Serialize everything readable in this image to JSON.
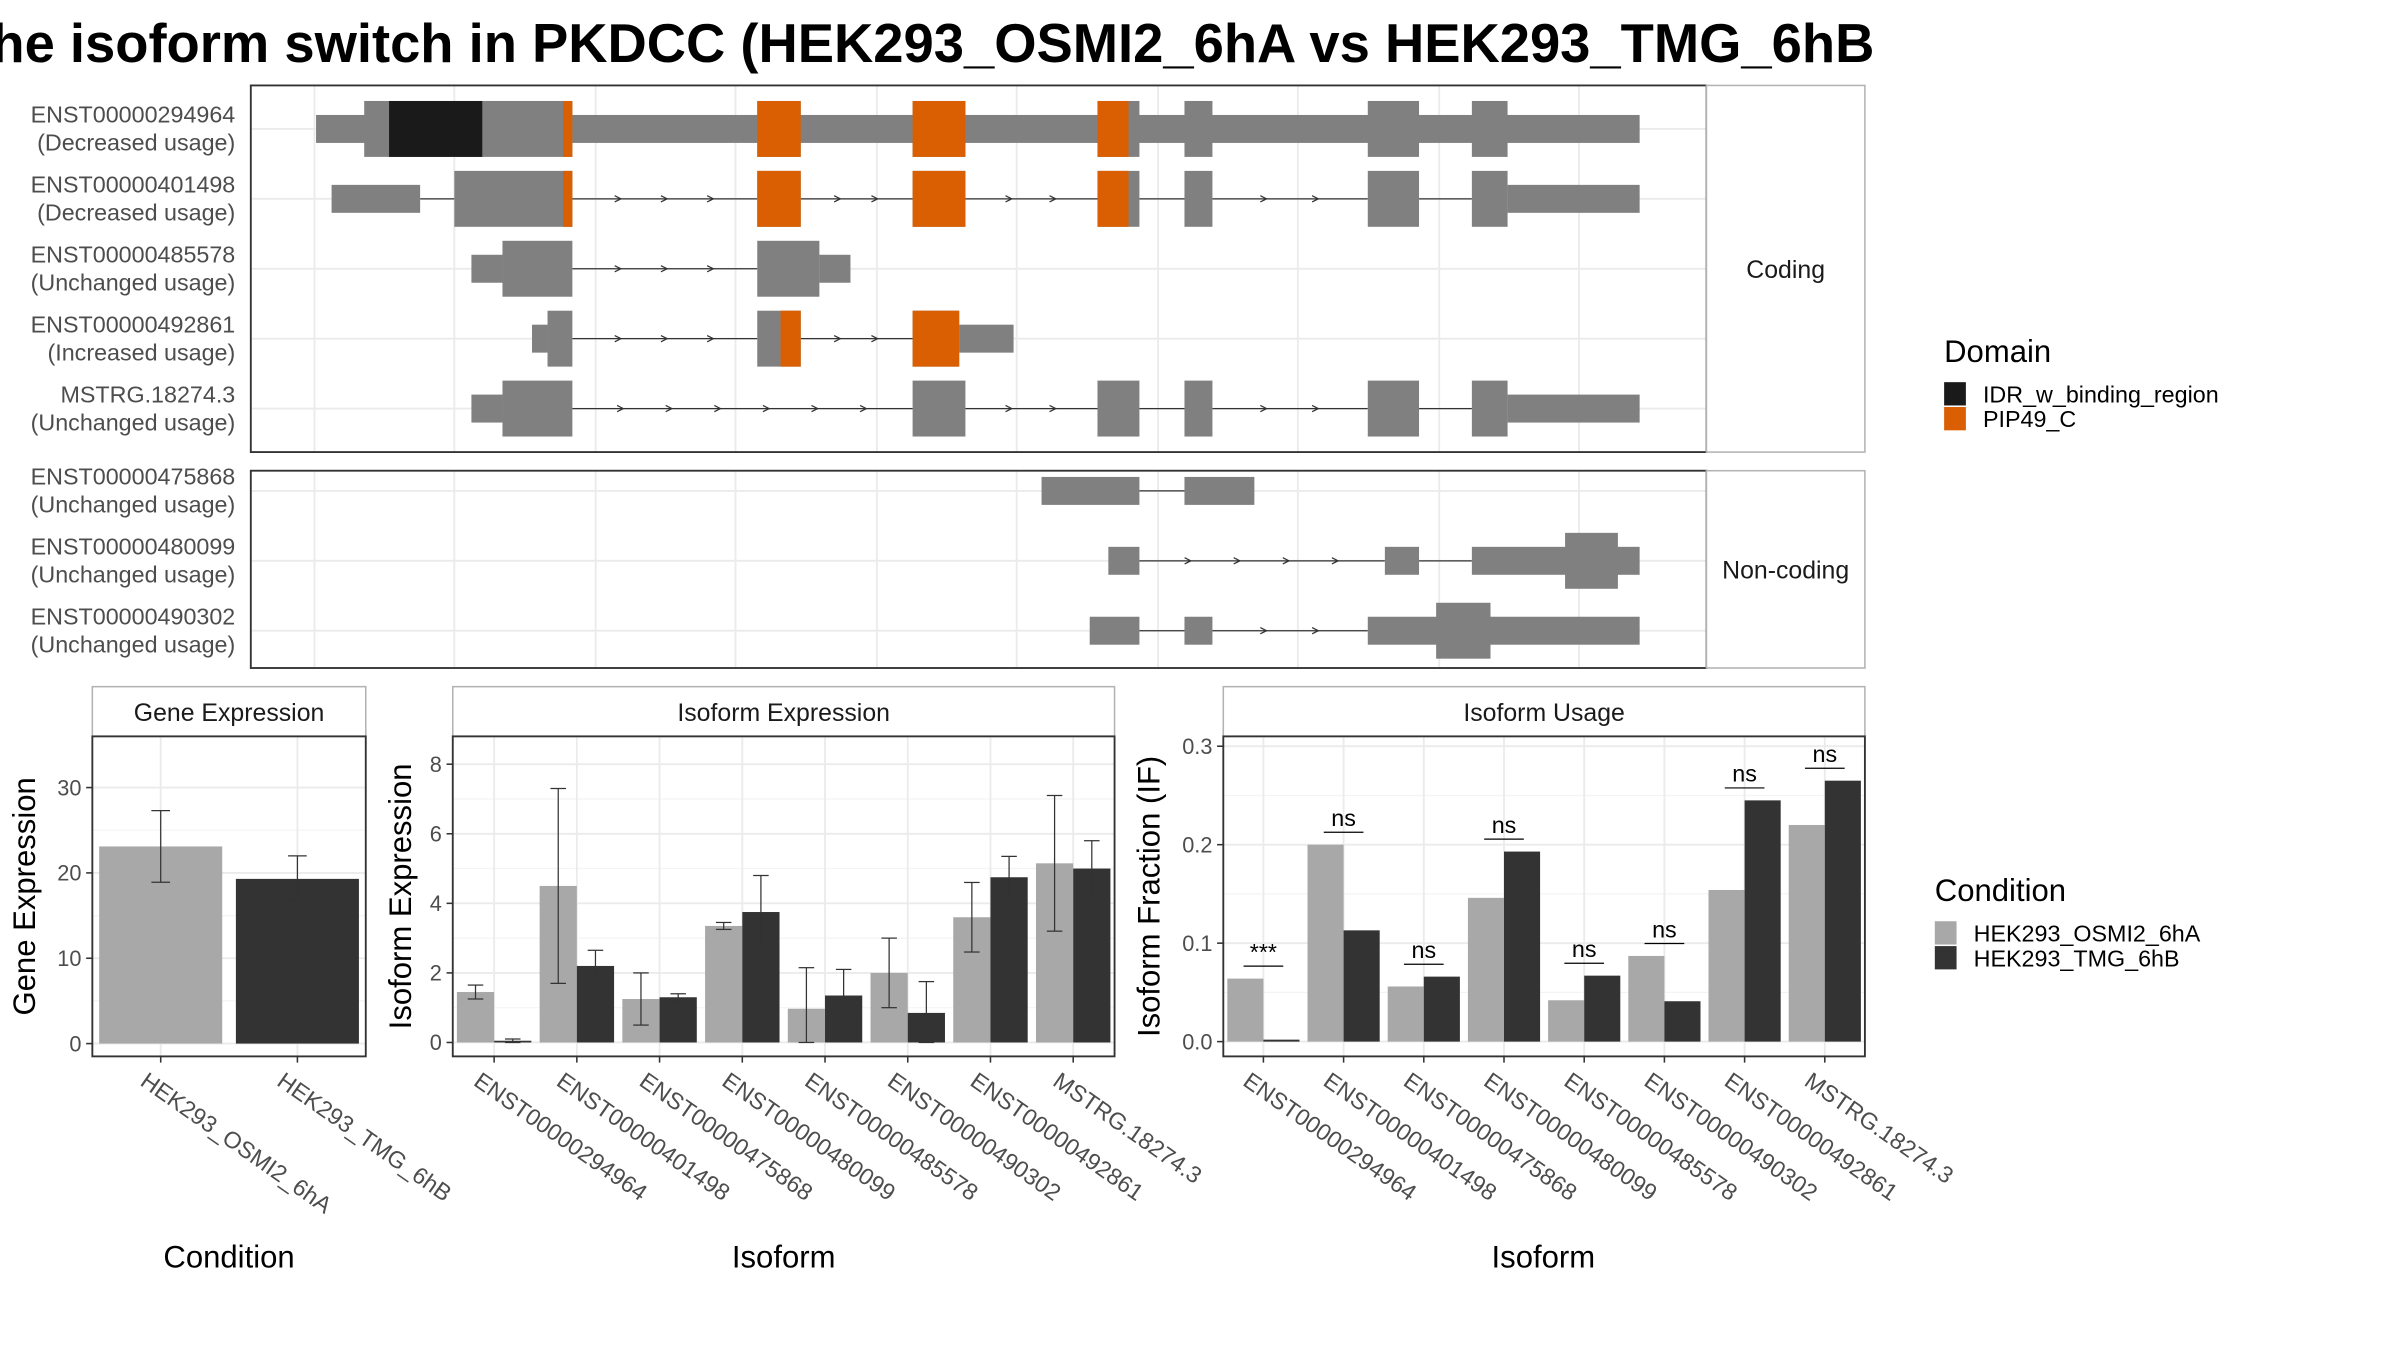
{
  "title": "he isoform switch in PKDCC (HEK293_OSMI2_6hA vs HEK293_TMG_6hB",
  "colors": {
    "exon": "#808080",
    "idr": "#1a1a1a",
    "pip": "#d95f02",
    "cond1": "#a8a8a8",
    "cond2": "#333333",
    "grid": "#ebebeb",
    "panel_border": "#333333",
    "strip_border": "#b3b3b3"
  },
  "structure": {
    "coding_strip": "Coding",
    "noncoding_strip": "Non-coding",
    "legend_title": "Domain",
    "legend_items": [
      {
        "label": "IDR_w_binding_region",
        "color": "#1a1a1a"
      },
      {
        "label": "PIP49_C",
        "color": "#d95f02"
      }
    ],
    "coding_isoforms": [
      {
        "id": "ENST00000294964",
        "usage": "(Decreased usage)",
        "utr": [
          [
            203,
            250
          ],
          [
            368,
            1055
          ]
        ],
        "cds": [
          [
            234,
            368
          ],
          [
            487,
            515
          ],
          [
            587,
            621
          ],
          [
            706,
            733
          ],
          [
            762,
            780
          ],
          [
            880,
            913
          ],
          [
            947,
            970
          ]
        ],
        "domains": [
          [
            250,
            310,
            "idr"
          ],
          [
            362,
            368,
            "pip"
          ],
          [
            487,
            515,
            "pip"
          ],
          [
            587,
            621,
            "pip"
          ],
          [
            706,
            726,
            "pip"
          ]
        ],
        "introns": [
          [
            368,
            487
          ],
          [
            515,
            587
          ],
          [
            621,
            706
          ],
          [
            733,
            762
          ],
          [
            780,
            880
          ],
          [
            913,
            947
          ]
        ]
      },
      {
        "id": "ENST00000401498",
        "usage": "(Decreased usage)",
        "utr": [
          [
            213,
            270
          ],
          [
            970,
            1055
          ]
        ],
        "cds": [
          [
            292,
            368
          ],
          [
            487,
            515
          ],
          [
            587,
            621
          ],
          [
            706,
            733
          ],
          [
            762,
            780
          ],
          [
            880,
            913
          ],
          [
            947,
            970
          ]
        ],
        "domains": [
          [
            362,
            368,
            "pip"
          ],
          [
            487,
            515,
            "pip"
          ],
          [
            587,
            621,
            "pip"
          ],
          [
            706,
            726,
            "pip"
          ]
        ],
        "introns": [
          [
            270,
            292
          ],
          [
            368,
            487
          ],
          [
            515,
            587
          ],
          [
            621,
            706
          ],
          [
            733,
            762
          ],
          [
            780,
            880
          ],
          [
            913,
            947
          ]
        ]
      },
      {
        "id": "ENST00000485578",
        "usage": "(Unchanged usage)",
        "utr": [
          [
            303,
            323
          ],
          [
            527,
            547
          ]
        ],
        "cds": [
          [
            323,
            368
          ],
          [
            487,
            527
          ]
        ],
        "domains": [],
        "introns": [
          [
            368,
            487
          ]
        ]
      },
      {
        "id": "ENST00000492861",
        "usage": "(Increased usage)",
        "utr": [
          [
            342,
            352
          ],
          [
            617,
            652
          ]
        ],
        "cds": [
          [
            352,
            368
          ],
          [
            487,
            515
          ],
          [
            587,
            617
          ]
        ],
        "domains": [
          [
            502,
            515,
            "pip"
          ],
          [
            587,
            617,
            "pip"
          ]
        ],
        "introns": [
          [
            368,
            487
          ],
          [
            515,
            587
          ]
        ]
      },
      {
        "id": "MSTRG.18274.3",
        "usage": "(Unchanged usage)",
        "utr": [
          [
            303,
            323
          ],
          [
            970,
            1055
          ]
        ],
        "cds": [
          [
            323,
            368
          ],
          [
            587,
            621
          ],
          [
            706,
            733
          ],
          [
            762,
            780
          ],
          [
            880,
            913
          ],
          [
            947,
            970
          ]
        ],
        "domains": [],
        "introns": [
          [
            368,
            587
          ],
          [
            621,
            706
          ],
          [
            733,
            762
          ],
          [
            780,
            880
          ],
          [
            913,
            947
          ]
        ]
      }
    ],
    "noncoding_isoforms": [
      {
        "id": "ENST00000475868",
        "usage": "(Unchanged usage)",
        "utr": [
          [
            670,
            733
          ],
          [
            762,
            807
          ]
        ],
        "cds": [],
        "domains": [],
        "introns": [
          [
            733,
            762
          ]
        ]
      },
      {
        "id": "ENST00000480099",
        "usage": "(Unchanged usage)",
        "utr": [
          [
            713,
            733
          ],
          [
            891,
            913
          ],
          [
            947,
            1055
          ]
        ],
        "cds": [
          [
            1007,
            1041
          ]
        ],
        "domains": [],
        "introns": [
          [
            733,
            891
          ],
          [
            913,
            947
          ]
        ]
      },
      {
        "id": "ENST00000490302",
        "usage": "(Unchanged usage)",
        "utr": [
          [
            701,
            733
          ],
          [
            762,
            780
          ],
          [
            880,
            1055
          ]
        ],
        "cds": [
          [
            924,
            959
          ]
        ],
        "domains": [],
        "introns": [
          [
            733,
            762
          ],
          [
            780,
            880
          ]
        ]
      }
    ]
  },
  "chart_data": [
    {
      "type": "bar",
      "title": "Gene Expression",
      "xlabel": "Condition",
      "ylabel": "Gene Expression",
      "categories": [
        "HEK293_OSMI2_6hA",
        "HEK293_TMG_6hB"
      ],
      "values": [
        23.1,
        19.3
      ],
      "err_low": [
        18.9,
        16.8
      ],
      "err_high": [
        27.3,
        22.0
      ],
      "ylim": [
        -1.5,
        36
      ],
      "yticks": [
        0,
        10,
        20,
        30
      ]
    },
    {
      "type": "bar",
      "title": "Isoform Expression",
      "xlabel": "Isoform",
      "ylabel": "Isoform Expression",
      "categories": [
        "ENST00000294964",
        "ENST00000401498",
        "ENST00000475868",
        "ENST00000480099",
        "ENST00000485578",
        "ENST00000490302",
        "ENST00000492861",
        "MSTRG.18274.3"
      ],
      "series": [
        {
          "name": "HEK293_OSMI2_6hA",
          "values": [
            1.45,
            4.5,
            1.25,
            3.35,
            0.97,
            2.0,
            3.6,
            5.15
          ],
          "err_low": [
            1.25,
            1.7,
            0.5,
            3.25,
            0.0,
            1.0,
            2.6,
            3.2
          ],
          "err_high": [
            1.65,
            7.3,
            2.0,
            3.45,
            2.15,
            3.0,
            4.6,
            7.1
          ]
        },
        {
          "name": "HEK293_TMG_6hB",
          "values": [
            0.05,
            2.2,
            1.3,
            3.75,
            1.35,
            0.85,
            4.75,
            5.0
          ],
          "err_low": [
            0.0,
            1.75,
            1.2,
            2.7,
            0.55,
            0.0,
            4.2,
            4.2
          ],
          "err_high": [
            0.1,
            2.65,
            1.4,
            4.8,
            2.1,
            1.75,
            5.35,
            5.8
          ]
        }
      ],
      "ylim": [
        -0.4,
        8.8
      ],
      "yticks": [
        0,
        2,
        4,
        6,
        8
      ]
    },
    {
      "type": "bar",
      "title": "Isoform Usage",
      "xlabel": "Isoform",
      "ylabel": "Isoform Fraction (IF)",
      "categories": [
        "ENST00000294964",
        "ENST00000401498",
        "ENST00000475868",
        "ENST00000480099",
        "ENST00000485578",
        "ENST00000490302",
        "ENST00000492861",
        "MSTRG.18274.3"
      ],
      "series": [
        {
          "name": "HEK293_OSMI2_6hA",
          "values": [
            0.064,
            0.2,
            0.056,
            0.146,
            0.042,
            0.087,
            0.154,
            0.22
          ]
        },
        {
          "name": "HEK293_TMG_6hB",
          "values": [
            0.002,
            0.113,
            0.066,
            0.193,
            0.067,
            0.041,
            0.245,
            0.265
          ]
        }
      ],
      "significance": [
        "***",
        "ns",
        "ns",
        "ns",
        "ns",
        "ns",
        "ns",
        "ns"
      ],
      "ylim": [
        -0.015,
        0.31
      ],
      "yticks": [
        0.0,
        0.1,
        0.2,
        0.3
      ],
      "ytick_labels": [
        "0.0",
        "0.1",
        "0.2",
        "0.3"
      ]
    }
  ],
  "condition_legend": {
    "title": "Condition",
    "items": [
      {
        "label": "HEK293_OSMI2_6hA",
        "color": "#a8a8a8"
      },
      {
        "label": "HEK293_TMG_6hB",
        "color": "#333333"
      }
    ]
  }
}
